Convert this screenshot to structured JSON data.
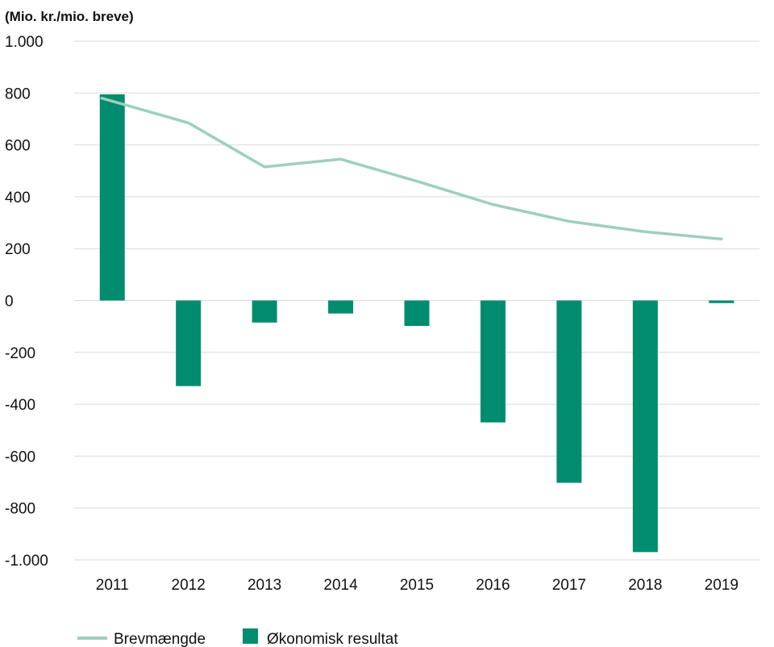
{
  "chart_data": {
    "type": "bar",
    "unit_label": "(Mio. kr./mio. breve)",
    "categories": [
      "2011",
      "2012",
      "2013",
      "2014",
      "2015",
      "2016",
      "2017",
      "2018",
      "2019"
    ],
    "y_ticks": [
      {
        "value": 1000,
        "label": "1.000"
      },
      {
        "value": 800,
        "label": "800"
      },
      {
        "value": 600,
        "label": "600"
      },
      {
        "value": 400,
        "label": "400"
      },
      {
        "value": 200,
        "label": "200"
      },
      {
        "value": 0,
        "label": "0"
      },
      {
        "value": -200,
        "label": "-200"
      },
      {
        "value": -400,
        "label": "-400"
      },
      {
        "value": -600,
        "label": "-600"
      },
      {
        "value": -800,
        "label": "-800"
      },
      {
        "value": -1000,
        "label": "-1.000"
      }
    ],
    "ylim": [
      -1000,
      1000
    ],
    "grid": true,
    "legend_position": "bottom-left",
    "series": [
      {
        "name": "Brevmængde",
        "type": "line",
        "color": "#9ecfbd",
        "values": [
          780,
          685,
          515,
          545,
          460,
          370,
          305,
          265,
          237
        ]
      },
      {
        "name": "Økonomisk resultat",
        "type": "bar",
        "color": "#008c6e",
        "values": [
          795,
          -330,
          -85,
          -50,
          -98,
          -470,
          -703,
          -970,
          -10
        ]
      }
    ]
  }
}
